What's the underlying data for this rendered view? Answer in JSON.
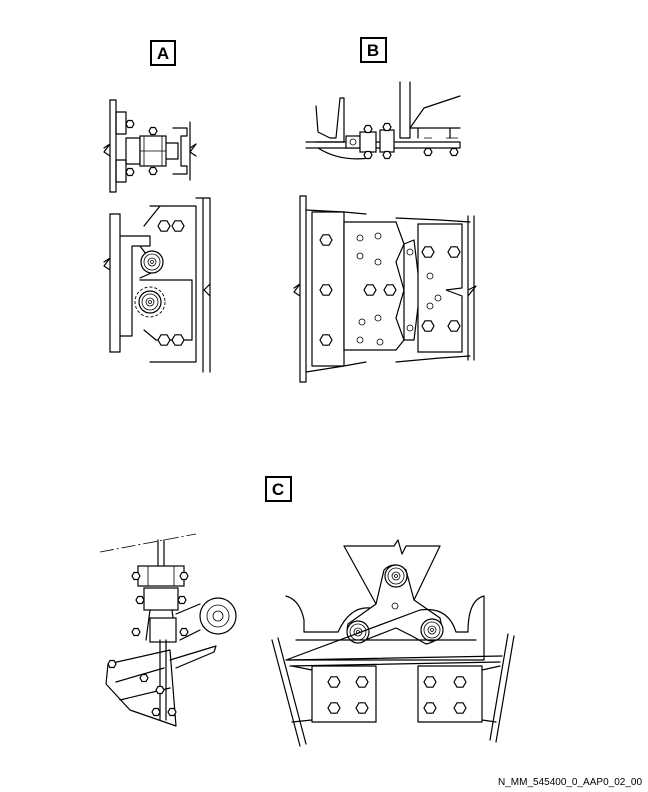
{
  "views": {
    "a": {
      "label": "A"
    },
    "b": {
      "label": "B"
    },
    "c": {
      "label": "C"
    }
  },
  "figure_id": "N_MM_545400_0_AAP0_02_00"
}
